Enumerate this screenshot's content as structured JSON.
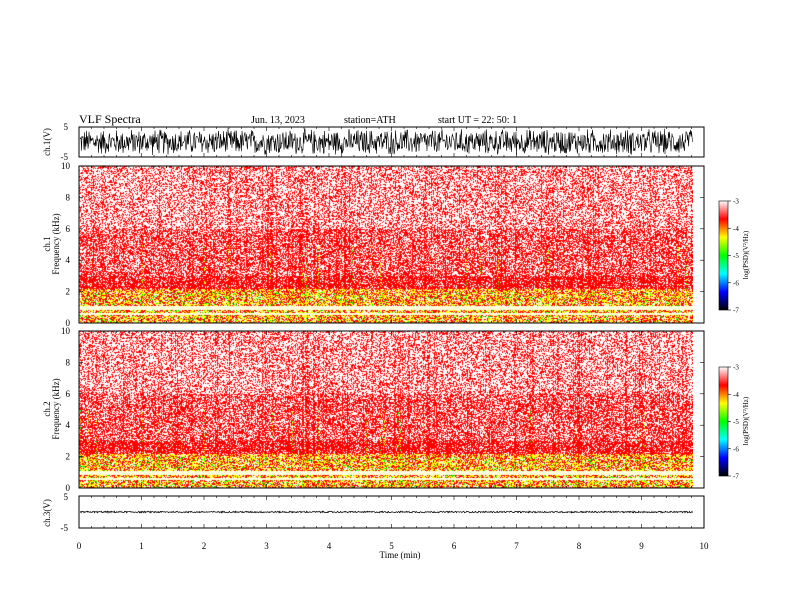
{
  "header": {
    "title": "VLF  Spectra",
    "date": "Jun. 13, 2023",
    "station": "station=ATH",
    "start": "start  UT  =    22: 50: 1"
  },
  "chart_data": {
    "type": "heatmap",
    "xlabel": "Time  (min)",
    "xlim": [
      0,
      10
    ],
    "x_ticks": [
      "0",
      "1",
      "2",
      "3",
      "4",
      "5",
      "6",
      "7",
      "8",
      "9",
      "10"
    ],
    "panels": [
      {
        "name": "ch.1(V)",
        "type": "line",
        "ylim": [
          -5,
          5
        ],
        "y_ticks": [
          "5",
          "-5"
        ],
        "amplitude": 5
      },
      {
        "name": "ch.1",
        "type": "heatmap",
        "ylabel": "Frequency  (kHz)",
        "ylim": [
          0,
          10
        ],
        "y_ticks": [
          "0",
          "2",
          "4",
          "6",
          "8",
          "10"
        ]
      },
      {
        "name": "ch.2",
        "type": "heatmap",
        "ylabel": "Frequency  (kHz)",
        "ylim": [
          0,
          10
        ],
        "y_ticks": [
          "0",
          "2",
          "4",
          "6",
          "8",
          "10"
        ]
      },
      {
        "name": "ch.3(V)",
        "type": "line",
        "ylim": [
          -5,
          5
        ],
        "y_ticks": [
          "5",
          "-5"
        ],
        "amplitude": 0.3
      }
    ],
    "colorbar": {
      "label": "log(PSD)(V²/Hz)",
      "range": [
        -7,
        -3
      ],
      "ticks": [
        "-3",
        "-4",
        "-5",
        "-6",
        "-7"
      ],
      "colors": [
        "#000000",
        "#0000ff",
        "#00ffff",
        "#00ff00",
        "#ffff00",
        "#ff0000",
        "#ffffff"
      ]
    }
  }
}
